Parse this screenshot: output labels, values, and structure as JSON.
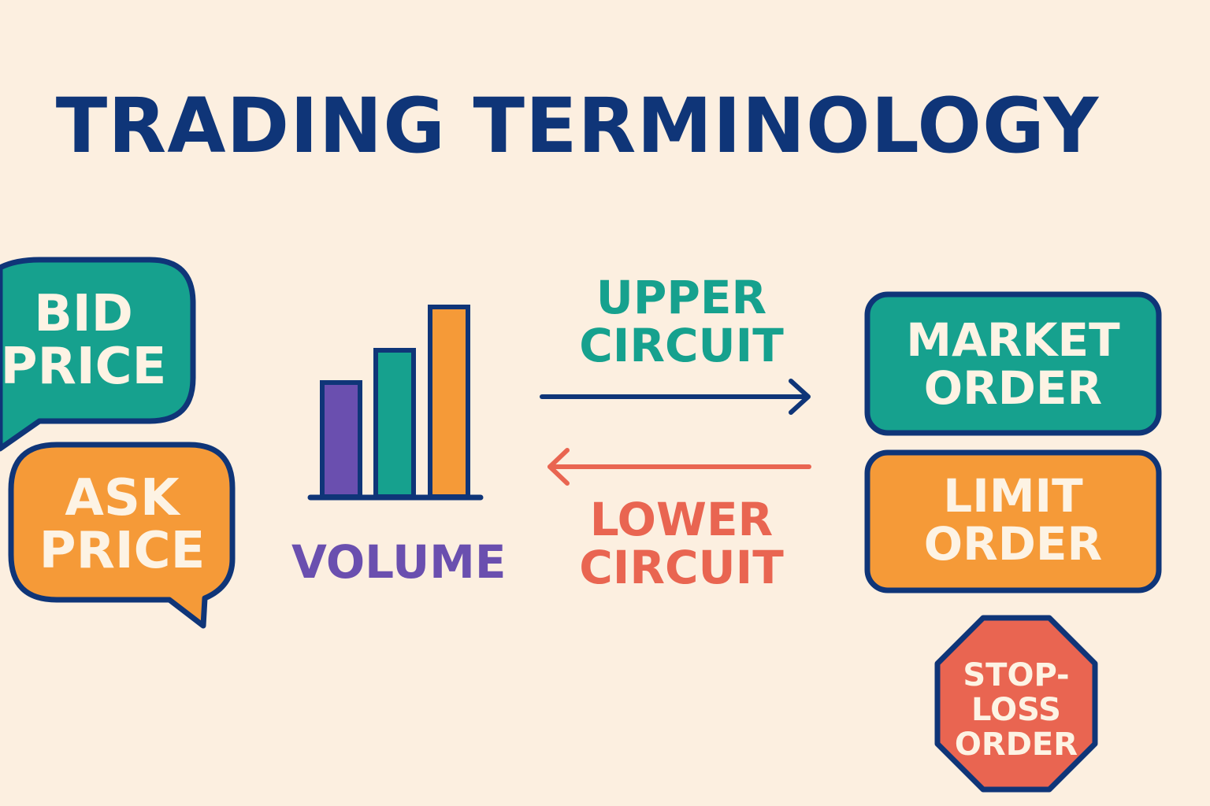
{
  "title": "TRADING TERMINOLOGY",
  "terms": {
    "bid_price": "BID\nPRICE",
    "ask_price": "ASK\nPRICE",
    "volume": "VOLUME",
    "upper_circuit": "UPPER\nCIRCUIT",
    "lower_circuit": "LOWER\nCIRCUIT",
    "market_order": "MARKET\nORDER",
    "limit_order": "LIMIT\nORDER",
    "stop_loss_order": "STOP-\nLOSS\nORDER"
  },
  "icons": {
    "bid_bubble": "speech-bubble-icon",
    "ask_bubble": "speech-bubble-icon",
    "volume_chart": "bar-chart-icon",
    "upper_arrow": "arrow-right-icon",
    "lower_arrow": "arrow-left-icon",
    "stop_sign": "stop-sign-icon"
  },
  "colors": {
    "background": "#fcefe0",
    "navy": "#0f3578",
    "teal": "#16a18e",
    "orange": "#f59a38",
    "purple": "#6a4faf",
    "red": "#e96551"
  }
}
